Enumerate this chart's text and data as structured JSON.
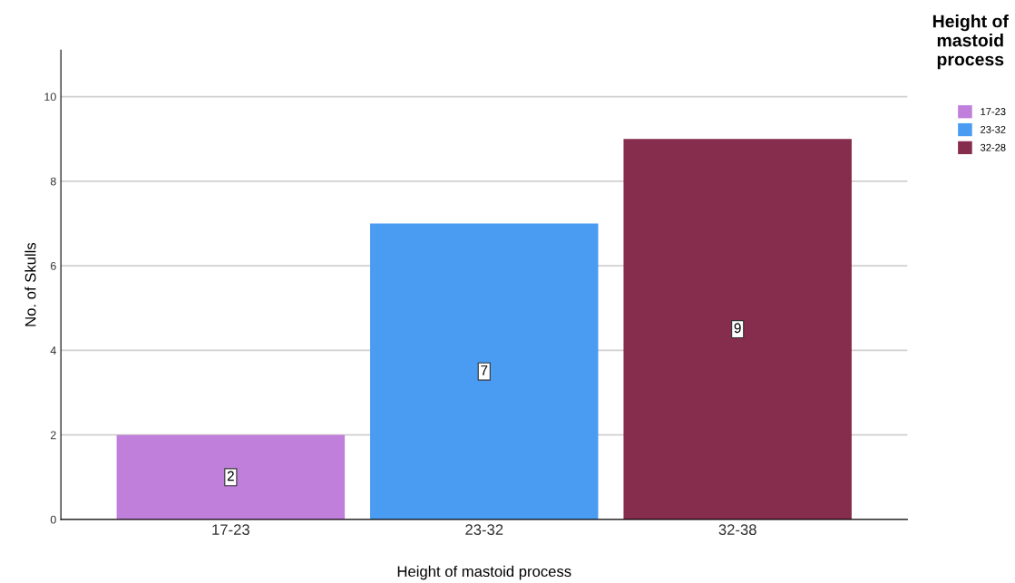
{
  "chart_data": {
    "type": "bar",
    "xlabel": "Height of mastoid process",
    "ylabel": "No. of Skulls",
    "legend_title": "Height of mastoid process",
    "categories": [
      "17-23",
      "23-32",
      "32-38"
    ],
    "series": [
      {
        "name": "17-23",
        "color": "#c17fdc",
        "values": [
          2,
          null,
          null
        ]
      },
      {
        "name": "23-32",
        "color": "#4a9cf2",
        "values": [
          null,
          7,
          null
        ]
      },
      {
        "name": "32-28",
        "color": "#862c4c",
        "values": [
          null,
          null,
          9
        ]
      }
    ],
    "ylim": [
      0,
      11.1
    ],
    "yticks": [
      0,
      2,
      4,
      6,
      8,
      10
    ],
    "grid": "y",
    "legend": "top right",
    "data_labels": true
  }
}
